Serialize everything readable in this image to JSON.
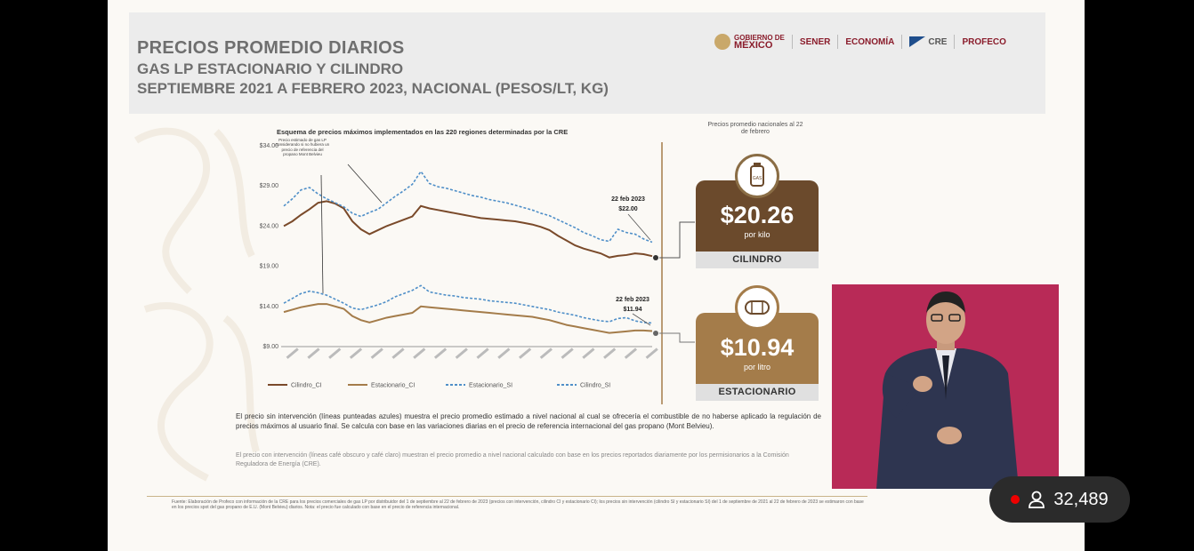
{
  "header": {
    "title": "PRECIOS PROMEDIO DIARIOS",
    "subtitle": "GAS LP ESTACIONARIO Y CILINDRO",
    "period": "SEPTIEMBRE 2021 A FEBRERO 2023, NACIONAL (PESOS/LT, KG)"
  },
  "logos": {
    "gobierno_small": "GOBIERNO DE",
    "gobierno": "MÉXICO",
    "sener": "SENER",
    "economia": "ECONOMÍA",
    "cre": "CRE",
    "profeco": "PROFECO"
  },
  "chart_data": {
    "type": "line",
    "title": "Esquema de precios máximos implementados en las 220 regiones determinadas por la CRE",
    "yticks": [
      "$34.00",
      "$29.00",
      "$24.00",
      "$19.00",
      "$14.00",
      "$9.00"
    ],
    "ylim": [
      9,
      34
    ],
    "x": [
      0,
      1,
      2,
      3,
      4,
      5,
      6,
      7,
      8,
      9,
      10,
      11,
      12,
      13,
      14,
      15,
      16,
      17,
      18,
      19,
      20,
      21,
      22,
      23,
      24,
      25,
      26,
      27,
      28,
      29,
      30,
      31,
      32,
      33,
      34,
      35,
      36,
      37,
      38,
      39,
      40,
      41,
      42,
      43
    ],
    "xlim": [
      0,
      43
    ],
    "series": [
      {
        "name": "Cilindro_CI",
        "color": "#7a4a2a",
        "dashed": false,
        "values": [
          24.0,
          24.6,
          25.4,
          26.1,
          26.9,
          27.1,
          26.8,
          26.2,
          24.6,
          23.6,
          23.0,
          23.5,
          24.0,
          24.4,
          24.8,
          25.2,
          26.5,
          26.2,
          26.0,
          25.8,
          25.6,
          25.4,
          25.2,
          25.0,
          24.9,
          24.8,
          24.7,
          24.6,
          24.4,
          24.2,
          23.9,
          23.5,
          22.8,
          22.2,
          21.6,
          21.2,
          20.9,
          20.6,
          20.1,
          20.3,
          20.4,
          20.6,
          20.5,
          20.26
        ]
      },
      {
        "name": "Estacionario_CI",
        "color": "#a47c4a",
        "dashed": false,
        "values": [
          13.3,
          13.6,
          13.9,
          14.1,
          14.3,
          14.3,
          14.0,
          13.7,
          12.8,
          12.3,
          12.0,
          12.3,
          12.6,
          12.8,
          13.0,
          13.2,
          14.0,
          13.9,
          13.8,
          13.7,
          13.6,
          13.5,
          13.4,
          13.3,
          13.2,
          13.1,
          13.0,
          12.9,
          12.8,
          12.7,
          12.5,
          12.3,
          12.0,
          11.7,
          11.5,
          11.3,
          11.1,
          10.9,
          10.7,
          10.8,
          10.9,
          11.0,
          11.0,
          10.94
        ]
      },
      {
        "name": "Estacionario_SI",
        "color": "#4f8fc8",
        "dashed": true,
        "values": [
          14.4,
          15.0,
          15.6,
          15.9,
          15.7,
          15.4,
          14.9,
          14.4,
          13.8,
          13.6,
          13.9,
          14.2,
          14.6,
          15.2,
          15.6,
          16.0,
          16.6,
          15.8,
          15.6,
          15.4,
          15.3,
          15.1,
          15.0,
          14.9,
          14.7,
          14.6,
          14.5,
          14.4,
          14.2,
          14.0,
          13.8,
          13.6,
          13.3,
          13.1,
          12.9,
          12.6,
          12.4,
          12.2,
          12.1,
          12.5,
          12.6,
          12.2,
          12.0,
          11.94
        ]
      },
      {
        "name": "Cilindro_SI",
        "color": "#4f8fc8",
        "dashed": true,
        "values": [
          26.5,
          27.4,
          28.5,
          28.8,
          28.0,
          27.4,
          26.9,
          26.4,
          25.6,
          25.2,
          25.7,
          26.1,
          26.9,
          27.7,
          28.4,
          29.2,
          30.8,
          29.3,
          28.9,
          28.7,
          28.4,
          28.1,
          27.8,
          27.6,
          27.3,
          27.1,
          26.9,
          26.6,
          26.3,
          26.0,
          25.6,
          25.3,
          24.8,
          24.3,
          23.8,
          23.2,
          22.8,
          22.3,
          22.1,
          23.6,
          23.2,
          23.0,
          22.4,
          22.0
        ]
      }
    ],
    "annotations": [
      {
        "text": "22 feb 2023",
        "value": "$22.00"
      },
      {
        "text": "22 feb 2023",
        "value": "$11.94"
      },
      {
        "text": "Precio estimado de gas LP considerando si no hubiera un precio de referencia del propano Mont Belvieu"
      }
    ],
    "legend": [
      "Cilindro_CI",
      "Estacionario_CI",
      "Estacionario_SI",
      "Cilindro_SI"
    ],
    "legend_position": "bottom",
    "grid": false
  },
  "price_panel": {
    "label": "Precios promedio nacionales al 22 de febrero",
    "cilindro": {
      "price": "$20.26",
      "unit": "por kilo",
      "name": "CILINDRO",
      "color": "#6b4a2c",
      "icon": "gas-cylinder-icon"
    },
    "estacionario": {
      "price": "$10.94",
      "unit": "por litro",
      "name": "ESTACIONARIO",
      "color": "#a47c4a",
      "icon": "gas-tank-icon"
    }
  },
  "notes": {
    "note1": "El precio sin intervención (líneas punteadas azules) muestra el precio promedio estimado a nivel nacional al cual se ofrecería el combustible de no haberse aplicado la regulación de precios máximos al usuario final. Se calcula con base en las variaciones diarias en el precio de referencia internacional del gas propano (Mont Belvieu).",
    "note2": "El precio con intervención (líneas café obscuro y café claro) muestran el precio promedio a nivel nacional calculado con base en los precios reportados diariamente por los permisionarios a la Comisión Reguladora de Energía (CRE).",
    "source": "Fuente: Elaboración de Profeco con información de la CRE para los precios comerciales de gas LP por distribuidor del 1 de septiembre al 22 de febrero de 2023 (precios con intervención, cilindro CI y estacionario CI); los precios sin intervención (cilindro SI y estacionario SI) del 1 de septiembre de 2021 al 22 de febrero de 2023 se estimaron con base en los precios spot del gas propano de E.U. (Mont Belvieu) diarios. Nota: el precio fue calculado con base en el precio de referencia internacional."
  },
  "stream": {
    "viewers": "32,489"
  }
}
